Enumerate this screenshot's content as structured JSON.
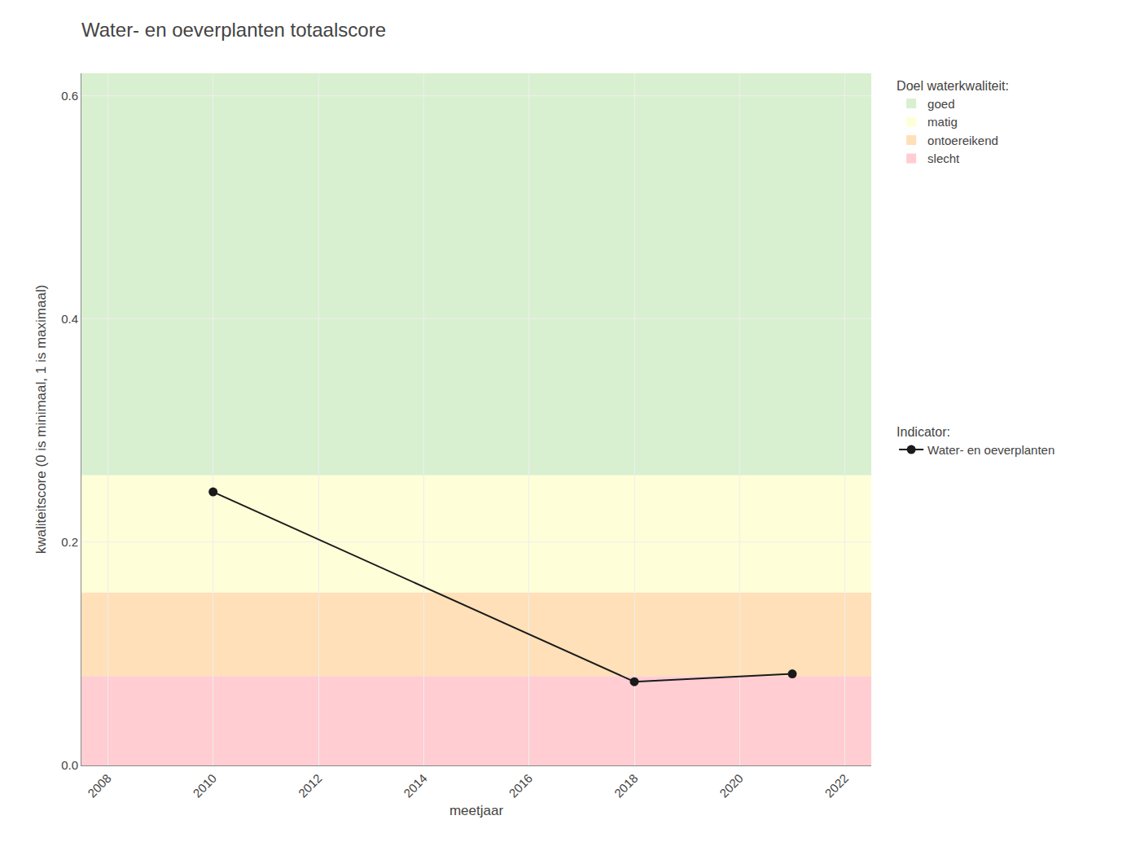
{
  "chart_data": {
    "type": "line",
    "title": "Water- en oeverplanten totaalscore",
    "xlabel": "meetjaar",
    "ylabel": "kwaliteitscore (0 is minimaal, 1 is maximaal)",
    "x": [
      2010,
      2018,
      2021
    ],
    "series": [
      {
        "name": "Water- en oeverplanten",
        "color": "#1a1a1a",
        "marker": "circle",
        "values": [
          0.245,
          0.075,
          0.082
        ]
      }
    ],
    "xlim": [
      2007.5,
      2022.5
    ],
    "xticks": [
      2008,
      2010,
      2012,
      2014,
      2016,
      2018,
      2020,
      2022
    ],
    "ylim": [
      0,
      0.62
    ],
    "yticks": [
      {
        "value": 0,
        "label": "0.0"
      },
      0.2,
      0.4,
      0.6
    ],
    "grid": true,
    "legend": "right",
    "zones": [
      {
        "name": "slecht",
        "color": "#ffcdd2",
        "ymin": 0.0,
        "ymax": 0.08
      },
      {
        "name": "ontoereikend",
        "color": "#ffe0b8",
        "ymin": 0.08,
        "ymax": 0.155
      },
      {
        "name": "matig",
        "color": "#feffd8",
        "ymin": 0.155,
        "ymax": 0.26
      },
      {
        "name": "goed",
        "color": "#d8f0d0",
        "ymin": 0.26,
        "ymax": 0.62
      }
    ],
    "zones_title": "Doel waterkwaliteit:",
    "series_title": "Indicator:"
  }
}
